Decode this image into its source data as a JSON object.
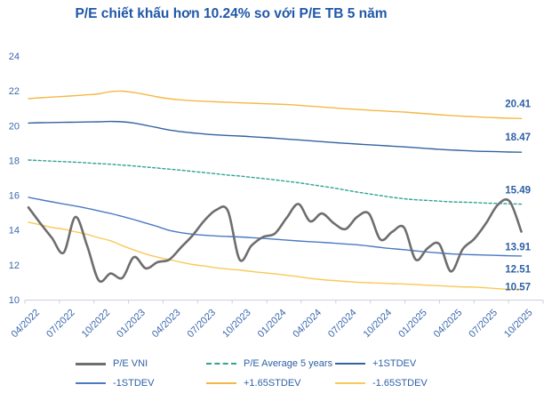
{
  "title": "P/E chiết khấu hơn 10.24% so với P/E TB 5 năm",
  "colors": {
    "title_text": "#1f57a8",
    "axis_text": "#3a68ac",
    "end_label_text": "#2d5fa6",
    "legend_text": "#2d5fa6",
    "axis_line": "#c9d2dc",
    "background": "#ffffff"
  },
  "chart_data": {
    "type": "line",
    "title": "P/E chiết khấu hơn 10.24% so với P/E TB 5 năm",
    "x_unit": "month",
    "x_labels": [
      "04/2022",
      "07/2022",
      "10/2022",
      "01/2023",
      "04/2023",
      "07/2023",
      "10/2023",
      "01/2024",
      "04/2024",
      "07/2024",
      "10/2024",
      "01/2025",
      "04/2025",
      "07/2025",
      "10/2025"
    ],
    "x_label_every_n_points": 3,
    "points_per_series": 43,
    "ylim": [
      10,
      24
    ],
    "y_ticks": [
      10,
      12,
      14,
      16,
      18,
      20,
      22,
      24
    ],
    "grid": false,
    "legend_position": "bottom",
    "series": [
      {
        "id": "pe-vni",
        "name": "P/E VNI",
        "color": "#6e6e6e",
        "width": 2.6,
        "dash": false,
        "end_label": "13.91",
        "values": [
          15.3,
          14.4,
          13.55,
          12.7,
          14.75,
          13.1,
          11.1,
          11.5,
          11.25,
          12.45,
          11.8,
          12.15,
          12.3,
          13.0,
          13.7,
          14.55,
          15.15,
          15.1,
          12.3,
          13.1,
          13.6,
          13.8,
          14.7,
          15.5,
          14.5,
          14.95,
          14.4,
          14.05,
          14.75,
          14.95,
          13.45,
          13.9,
          14.15,
          12.3,
          12.95,
          13.2,
          11.62,
          12.9,
          13.5,
          14.4,
          15.45,
          15.65,
          13.91
        ]
      },
      {
        "id": "pe-average-5-years",
        "name": "P/E Average 5 years",
        "color": "#2fa493",
        "width": 1.4,
        "dash": true,
        "end_label": "15.49",
        "values": [
          18.02,
          17.99,
          17.96,
          17.93,
          17.9,
          17.86,
          17.82,
          17.78,
          17.73,
          17.68,
          17.62,
          17.56,
          17.5,
          17.44,
          17.37,
          17.3,
          17.23,
          17.16,
          17.1,
          17.03,
          16.96,
          16.88,
          16.8,
          16.72,
          16.62,
          16.52,
          16.42,
          16.3,
          16.18,
          16.08,
          15.98,
          15.88,
          15.8,
          15.74,
          15.7,
          15.66,
          15.62,
          15.6,
          15.58,
          15.55,
          15.53,
          15.51,
          15.49
        ]
      },
      {
        "id": "plus-1stdev",
        "name": "+1STDEV",
        "color": "#33639f",
        "width": 1.4,
        "dash": false,
        "end_label": "18.47",
        "values": [
          20.15,
          20.17,
          20.18,
          20.19,
          20.2,
          20.21,
          20.22,
          20.24,
          20.22,
          20.15,
          20.02,
          19.88,
          19.75,
          19.65,
          19.58,
          19.52,
          19.47,
          19.43,
          19.4,
          19.36,
          19.32,
          19.28,
          19.23,
          19.18,
          19.13,
          19.08,
          19.03,
          18.98,
          18.94,
          18.9,
          18.86,
          18.82,
          18.78,
          18.73,
          18.68,
          18.64,
          18.6,
          18.57,
          18.54,
          18.52,
          18.5,
          18.48,
          18.47
        ]
      },
      {
        "id": "minus-1stdev",
        "name": "-1STDEV",
        "color": "#4a7ac2",
        "width": 1.4,
        "dash": false,
        "end_label": "12.51",
        "values": [
          15.88,
          15.75,
          15.62,
          15.5,
          15.38,
          15.25,
          15.1,
          14.95,
          14.78,
          14.6,
          14.4,
          14.2,
          13.98,
          13.85,
          13.76,
          13.7,
          13.66,
          13.63,
          13.6,
          13.56,
          13.52,
          13.47,
          13.42,
          13.37,
          13.33,
          13.29,
          13.25,
          13.2,
          13.15,
          13.08,
          13.0,
          12.93,
          12.87,
          12.8,
          12.74,
          12.68,
          12.63,
          12.6,
          12.58,
          12.56,
          12.54,
          12.52,
          12.51
        ]
      },
      {
        "id": "plus-1-65stdev",
        "name": "+1.65STDEV",
        "color": "#f5b843",
        "width": 1.4,
        "dash": false,
        "end_label": "20.41",
        "values": [
          21.55,
          21.6,
          21.64,
          21.68,
          21.72,
          21.77,
          21.83,
          21.95,
          21.98,
          21.9,
          21.78,
          21.65,
          21.55,
          21.48,
          21.43,
          21.4,
          21.37,
          21.34,
          21.31,
          21.29,
          21.26,
          21.24,
          21.21,
          21.17,
          21.12,
          21.07,
          21.02,
          20.97,
          20.93,
          20.89,
          20.85,
          20.81,
          20.78,
          20.73,
          20.68,
          20.63,
          20.58,
          20.54,
          20.51,
          20.48,
          20.45,
          20.43,
          20.41
        ]
      },
      {
        "id": "minus-1-65stdev",
        "name": "-1.65STDEV",
        "color": "#f9c957",
        "width": 1.4,
        "dash": false,
        "end_label": "10.57",
        "values": [
          14.45,
          14.3,
          14.15,
          14.05,
          13.9,
          13.75,
          13.55,
          13.38,
          13.1,
          12.85,
          12.62,
          12.44,
          12.3,
          12.15,
          12.02,
          11.93,
          11.83,
          11.76,
          11.7,
          11.62,
          11.55,
          11.48,
          11.4,
          11.32,
          11.22,
          11.15,
          11.1,
          11.05,
          11.0,
          10.97,
          10.95,
          10.92,
          10.9,
          10.87,
          10.83,
          10.8,
          10.76,
          10.73,
          10.72,
          10.68,
          10.63,
          10.6,
          10.57
        ]
      }
    ]
  }
}
